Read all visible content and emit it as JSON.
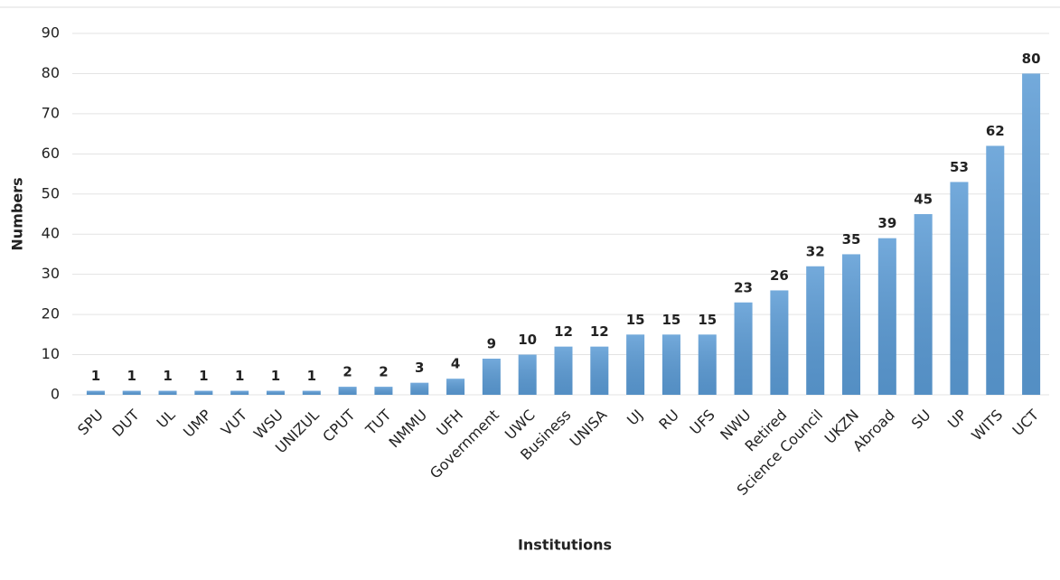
{
  "chart_data": {
    "type": "bar",
    "xlabel": "Institutions",
    "ylabel": "Numbers",
    "categories": [
      "SPU",
      "DUT",
      "UL",
      "UMP",
      "VUT",
      "WSU",
      "UNIZUL",
      "CPUT",
      "TUT",
      "NMMU",
      "UFH",
      "Government",
      "UWC",
      "Business",
      "UNISA",
      "UJ",
      "RU",
      "UFS",
      "NWU",
      "Retired",
      "Science Council",
      "UKZN",
      "Abroad",
      "SU",
      "UP",
      "WITS",
      "UCT"
    ],
    "values": [
      1,
      1,
      1,
      1,
      1,
      1,
      1,
      2,
      2,
      3,
      4,
      9,
      10,
      12,
      12,
      15,
      15,
      15,
      23,
      26,
      32,
      35,
      39,
      45,
      53,
      62,
      80
    ],
    "color": "#5b9bd5",
    "ylim": [
      0,
      90
    ],
    "yticks": [
      0,
      10,
      20,
      30,
      40,
      50,
      60,
      70,
      80,
      90
    ],
    "grid": true
  }
}
